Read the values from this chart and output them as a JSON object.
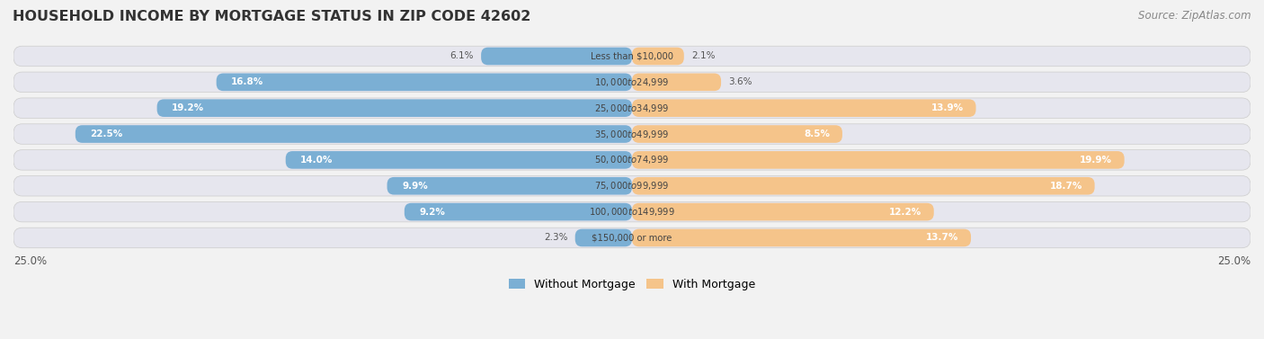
{
  "title": "HOUSEHOLD INCOME BY MORTGAGE STATUS IN ZIP CODE 42602",
  "source": "Source: ZipAtlas.com",
  "categories": [
    "Less than $10,000",
    "$10,000 to $24,999",
    "$25,000 to $34,999",
    "$35,000 to $49,999",
    "$50,000 to $74,999",
    "$75,000 to $99,999",
    "$100,000 to $149,999",
    "$150,000 or more"
  ],
  "without_mortgage": [
    6.1,
    16.8,
    19.2,
    22.5,
    14.0,
    9.9,
    9.2,
    2.3
  ],
  "with_mortgage": [
    2.1,
    3.6,
    13.9,
    8.5,
    19.9,
    18.7,
    12.2,
    13.7
  ],
  "color_without": "#7BAFD4",
  "color_with": "#F5C48A",
  "axis_limit": 25.0,
  "bg_color": "#f2f2f2",
  "bar_bg_color": "#e6e6ee",
  "bar_bg_color_alt": "#dcdce8",
  "legend_label_without": "Without Mortgage",
  "legend_label_with": "With Mortgage",
  "bottom_left_label": "25.0%",
  "bottom_right_label": "25.0%",
  "without_inside_threshold": 9.0,
  "with_inside_threshold": 8.0
}
